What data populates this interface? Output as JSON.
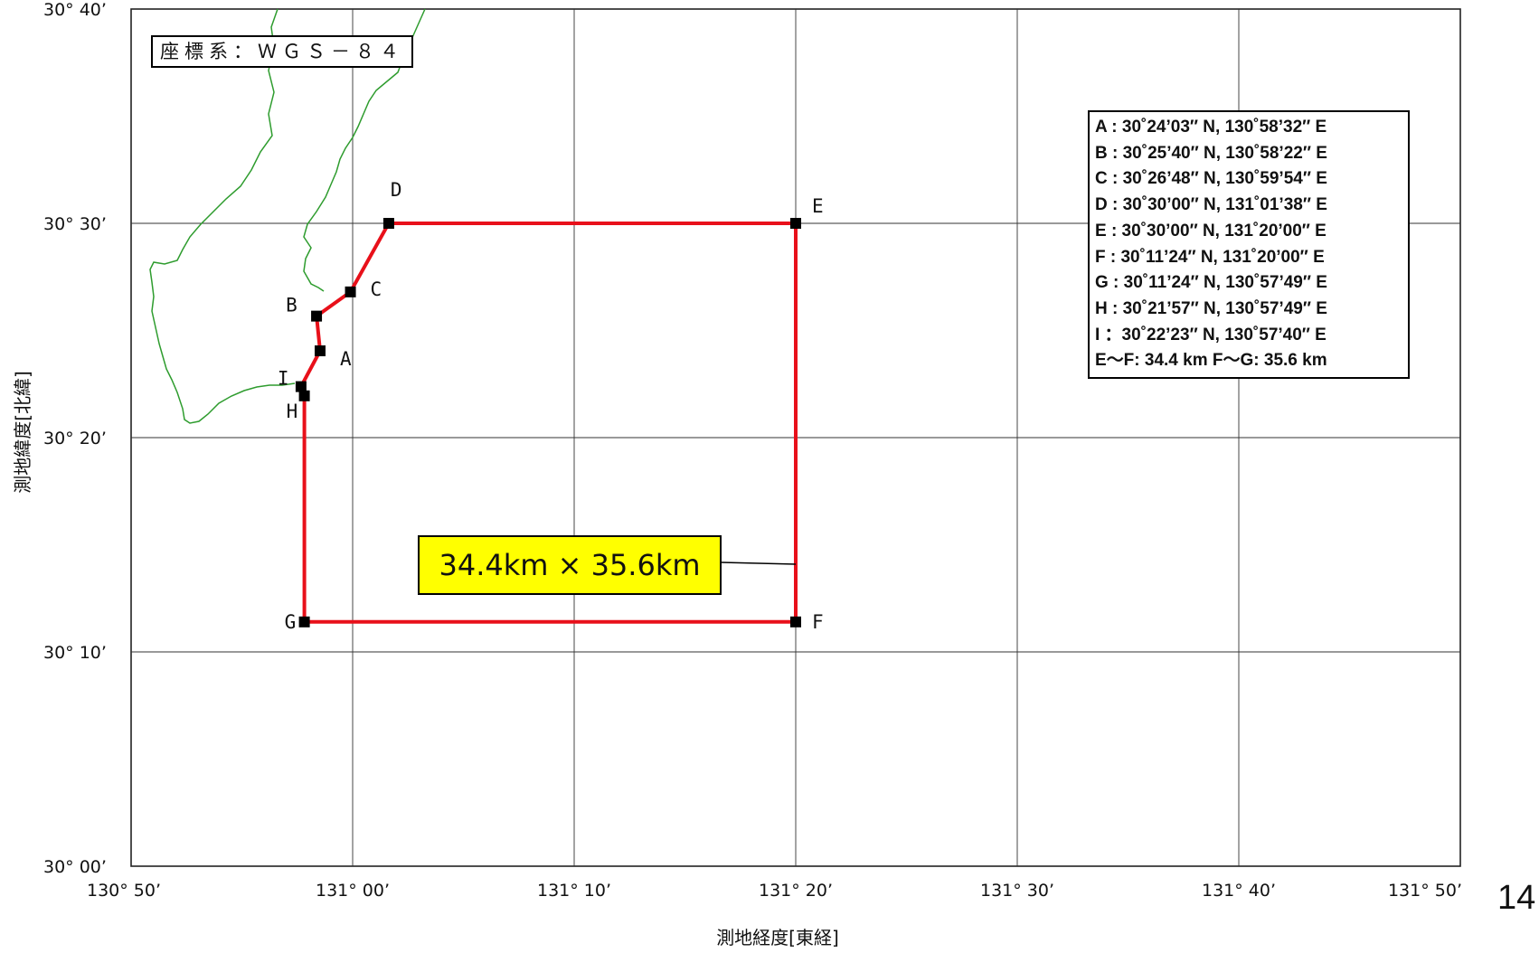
{
  "crs_label": "座標系：ＷＧＳ－８４",
  "y_axis_title": "測地緯度[北緯]",
  "x_axis_title": "測地経度[東経]",
  "page_number": "14",
  "area_size_label": "34.4km × 35.6km",
  "lat_ticks": [
    {
      "label": "30° 40’",
      "minutes": 40
    },
    {
      "label": "30° 30’",
      "minutes": 30
    },
    {
      "label": "30° 20’",
      "minutes": 20
    },
    {
      "label": "30° 10’",
      "minutes": 10
    },
    {
      "label": "30° 00’",
      "minutes": 0
    }
  ],
  "lon_ticks": [
    {
      "label": "130° 50’",
      "minutes": -10
    },
    {
      "label": "131° 00’",
      "minutes": 0
    },
    {
      "label": "131° 10’",
      "minutes": 10
    },
    {
      "label": "131° 20’",
      "minutes": 20
    },
    {
      "label": "131° 30’",
      "minutes": 30
    },
    {
      "label": "131° 40’",
      "minutes": 40
    },
    {
      "label": "131° 50’",
      "minutes": 50
    }
  ],
  "points": [
    {
      "id": "A",
      "lat_min": 24.05,
      "lon_min": -1.47
    },
    {
      "id": "B",
      "lat_min": 25.67,
      "lon_min": -1.63
    },
    {
      "id": "C",
      "lat_min": 26.8,
      "lon_min": -0.1
    },
    {
      "id": "D",
      "lat_min": 30.0,
      "lon_min": 1.63
    },
    {
      "id": "E",
      "lat_min": 30.0,
      "lon_min": 20.0
    },
    {
      "id": "F",
      "lat_min": 11.4,
      "lon_min": 20.0
    },
    {
      "id": "G",
      "lat_min": 11.4,
      "lon_min": -2.18
    },
    {
      "id": "H",
      "lat_min": 21.95,
      "lon_min": -2.18
    },
    {
      "id": "I",
      "lat_min": 22.38,
      "lon_min": -2.33
    }
  ],
  "boundary_color": "#e8101a",
  "coast_color": "#2e9c2e",
  "legend": [
    "A : 30˚24’03″ N, 130˚58’32″ E",
    "B : 30˚25’40″ N, 130˚58’22″ E",
    "C : 30˚26’48″ N, 130˚59’54″ E",
    "D : 30˚30’00″ N, 131˚01’38″ E",
    "E : 30˚30’00″ N, 131˚20’00″ E",
    "F : 30˚11’24″ N, 131˚20’00″ E",
    "G : 30˚11’24″ N, 130˚57’49″ E",
    "H : 30˚21’57″ N, 130˚57’49″ E",
    "I ：30˚22’23″ N, 130˚57’40″ E",
    "E～F: 34.4 km  F～G: 35.6 km"
  ]
}
